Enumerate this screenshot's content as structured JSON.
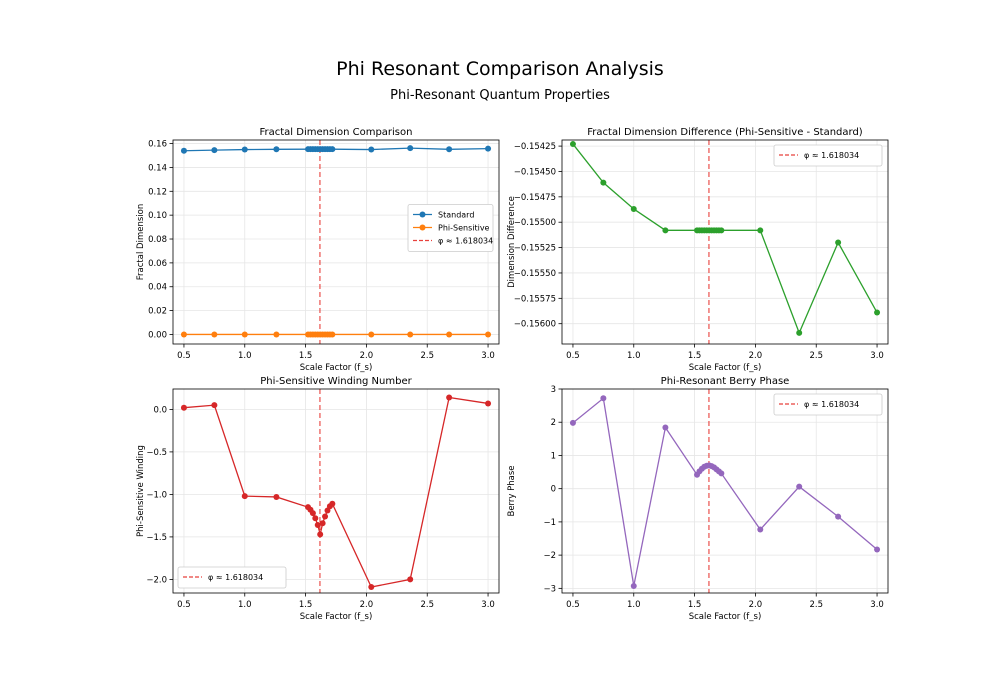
{
  "figure": {
    "title": "Phi Resonant Comparison Analysis",
    "subtitle": "Phi-Resonant Quantum Properties"
  },
  "colors": {
    "standard": "#1f77b4",
    "phi_sensitive": "#ff7f0e",
    "difference": "#2ca02c",
    "winding": "#d62728",
    "berry": "#9467bd",
    "phi_line": "#e8413c"
  },
  "chart_data": [
    {
      "type": "line",
      "title": "Fractal Dimension Comparison",
      "xlabel": "Scale Factor (f_s)",
      "ylabel": "Fractal Dimension",
      "xlim": [
        0.41,
        3.09
      ],
      "ylim": [
        -0.008,
        0.163
      ],
      "xticks": [
        0.5,
        1.0,
        1.5,
        2.0,
        2.5,
        3.0
      ],
      "xtick_labels": [
        "0.5",
        "1.0",
        "1.5",
        "2.0",
        "2.5",
        "3.0"
      ],
      "yticks": [
        0.0,
        0.02,
        0.04,
        0.06,
        0.08,
        0.1,
        0.12,
        0.14,
        0.16
      ],
      "ytick_labels": [
        "0.00",
        "0.02",
        "0.04",
        "0.06",
        "0.08",
        "0.10",
        "0.12",
        "0.14",
        "0.16"
      ],
      "grid": true,
      "legend": "center-right",
      "phi_line": {
        "x": 1.618034,
        "label": "φ ≈ 1.618034"
      },
      "series": [
        {
          "name": "Standard",
          "color_key": "standard",
          "x": [
            0.5,
            0.75,
            1.0,
            1.26,
            1.52,
            1.54,
            1.56,
            1.58,
            1.6,
            1.62,
            1.64,
            1.66,
            1.68,
            1.7,
            1.72,
            2.04,
            2.36,
            2.68,
            3.0
          ],
          "y": [
            0.154,
            0.1545,
            0.155,
            0.1552,
            0.1553,
            0.1553,
            0.1553,
            0.1553,
            0.1553,
            0.1553,
            0.1553,
            0.1553,
            0.1553,
            0.1553,
            0.1553,
            0.155,
            0.1562,
            0.1552,
            0.1558
          ]
        },
        {
          "name": "Phi-Sensitive",
          "color_key": "phi_sensitive",
          "x": [
            0.5,
            0.75,
            1.0,
            1.26,
            1.52,
            1.54,
            1.56,
            1.58,
            1.6,
            1.62,
            1.64,
            1.66,
            1.68,
            1.7,
            1.72,
            2.04,
            2.36,
            2.68,
            3.0
          ],
          "y": [
            0.0,
            0.0,
            0.0,
            0.0,
            0.0,
            0.0,
            0.0,
            0.0,
            0.0,
            0.0,
            0.0,
            0.0,
            0.0,
            0.0,
            0.0,
            0.0,
            0.0,
            0.0,
            0.0
          ]
        }
      ]
    },
    {
      "type": "line",
      "title": "Fractal Dimension Difference (Phi-Sensitive - Standard)",
      "xlabel": "Scale Factor (f_s)",
      "ylabel": "Dimension Difference",
      "xlim": [
        0.41,
        3.09
      ],
      "ylim": [
        -0.1562,
        -0.15419
      ],
      "xticks": [
        0.5,
        1.0,
        1.5,
        2.0,
        2.5,
        3.0
      ],
      "xtick_labels": [
        "0.5",
        "1.0",
        "1.5",
        "2.0",
        "2.5",
        "3.0"
      ],
      "yticks": [
        -0.15425,
        -0.1545,
        -0.15475,
        -0.155,
        -0.15525,
        -0.1555,
        -0.15575,
        -0.156
      ],
      "ytick_labels": [
        "−0.15425",
        "−0.15450",
        "−0.15475",
        "−0.15500",
        "−0.15525",
        "−0.15550",
        "−0.15575",
        "−0.15600"
      ],
      "grid": true,
      "legend": "top-right",
      "phi_line": {
        "x": 1.618034,
        "label": "φ ≈ 1.618034"
      },
      "series": [
        {
          "color_key": "difference",
          "x": [
            0.5,
            0.75,
            1.0,
            1.26,
            1.52,
            1.54,
            1.56,
            1.58,
            1.6,
            1.62,
            1.64,
            1.66,
            1.68,
            1.7,
            1.72,
            2.04,
            2.36,
            2.68,
            3.0
          ],
          "y": [
            -0.15423,
            -0.15461,
            -0.15487,
            -0.15508,
            -0.15508,
            -0.15508,
            -0.15508,
            -0.15508,
            -0.15508,
            -0.15508,
            -0.15508,
            -0.15508,
            -0.15508,
            -0.15508,
            -0.15508,
            -0.15508,
            -0.15609,
            -0.1552,
            -0.15589
          ]
        }
      ]
    },
    {
      "type": "line",
      "title": "Phi-Sensitive Winding Number",
      "xlabel": "Scale Factor (f_s)",
      "ylabel": "Phi-Sensitive Winding",
      "xlim": [
        0.41,
        3.09
      ],
      "ylim": [
        -2.16,
        0.24
      ],
      "xticks": [
        0.5,
        1.0,
        1.5,
        2.0,
        2.5,
        3.0
      ],
      "xtick_labels": [
        "0.5",
        "1.0",
        "1.5",
        "2.0",
        "2.5",
        "3.0"
      ],
      "yticks": [
        0.0,
        -0.5,
        -1.0,
        -1.5,
        -2.0
      ],
      "ytick_labels": [
        "0.0",
        "−0.5",
        "−1.0",
        "−1.5",
        "−2.0"
      ],
      "grid": true,
      "legend": "bottom-left",
      "phi_line": {
        "x": 1.618034,
        "label": "φ ≈ 1.618034"
      },
      "series": [
        {
          "color_key": "winding",
          "x": [
            0.5,
            0.75,
            1.0,
            1.26,
            1.52,
            1.54,
            1.56,
            1.58,
            1.6,
            1.62,
            1.64,
            1.66,
            1.68,
            1.7,
            1.72,
            2.04,
            2.36,
            2.68,
            3.0
          ],
          "y": [
            0.02,
            0.05,
            -1.02,
            -1.03,
            -1.15,
            -1.18,
            -1.22,
            -1.28,
            -1.36,
            -1.47,
            -1.34,
            -1.26,
            -1.19,
            -1.14,
            -1.11,
            -2.09,
            -2.0,
            0.14,
            0.07
          ]
        }
      ]
    },
    {
      "type": "line",
      "title": "Phi-Resonant Berry Phase",
      "xlabel": "Scale Factor (f_s)",
      "ylabel": "Berry Phase",
      "xlim": [
        0.41,
        3.09
      ],
      "ylim": [
        -3.14,
        3.0
      ],
      "xticks": [
        0.5,
        1.0,
        1.5,
        2.0,
        2.5,
        3.0
      ],
      "xtick_labels": [
        "0.5",
        "1.0",
        "1.5",
        "2.0",
        "2.5",
        "3.0"
      ],
      "yticks": [
        3,
        2,
        1,
        0,
        -1,
        -2,
        -3
      ],
      "ytick_labels": [
        "3",
        "2",
        "1",
        "0",
        "−1",
        "−2",
        "−3"
      ],
      "grid": true,
      "legend": "top-right",
      "phi_line": {
        "x": 1.618034,
        "label": "φ ≈ 1.618034"
      },
      "series": [
        {
          "color_key": "berry",
          "x": [
            0.5,
            0.75,
            1.0,
            1.26,
            1.52,
            1.54,
            1.56,
            1.58,
            1.6,
            1.62,
            1.64,
            1.66,
            1.68,
            1.7,
            1.72,
            2.04,
            2.36,
            2.68,
            3.0
          ],
          "y": [
            1.98,
            2.72,
            -2.93,
            1.84,
            0.42,
            0.52,
            0.6,
            0.66,
            0.69,
            0.7,
            0.68,
            0.64,
            0.58,
            0.52,
            0.46,
            -1.23,
            0.06,
            -0.84,
            -1.83
          ]
        }
      ]
    }
  ]
}
